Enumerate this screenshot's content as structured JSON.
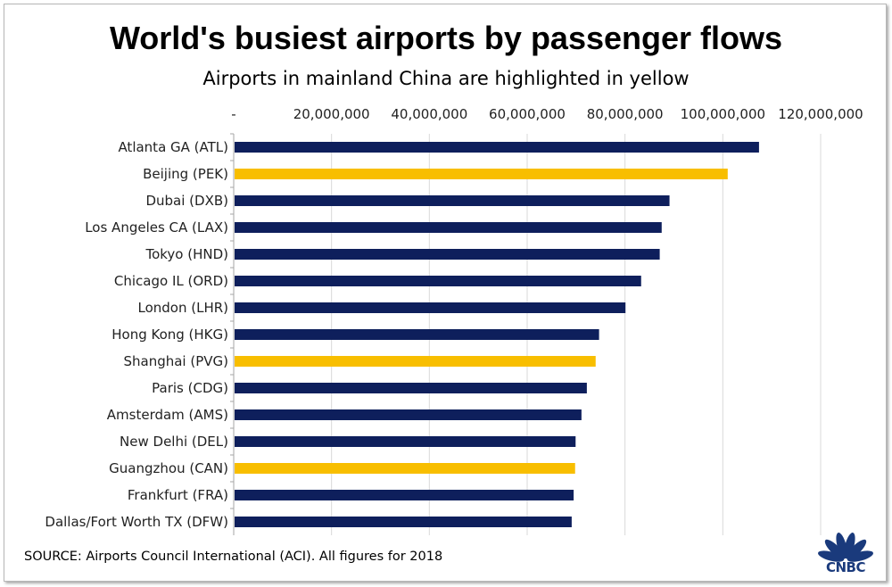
{
  "title": "World's busiest airports by passenger flows",
  "subtitle": "Airports in mainland China are highlighted in yellow",
  "source": "SOURCE: Airports Council International (ACI). All figures for 2018",
  "logo_text": "CNBC",
  "colors": {
    "default_bar": "#0e1f5c",
    "highlight_bar": "#f8be00",
    "grid": "#d9d9d9"
  },
  "chart_data": {
    "type": "bar",
    "orientation": "horizontal",
    "title": "World's busiest airports by passenger flows",
    "subtitle": "Airports in mainland China are highlighted in yellow",
    "xlabel": "",
    "ylabel": "",
    "xlim": [
      0,
      120000000
    ],
    "x_ticks": [
      0,
      20000000,
      40000000,
      60000000,
      80000000,
      100000000,
      120000000
    ],
    "x_tick_labels": [
      "-",
      "20,000,000",
      "40,000,000",
      "60,000,000",
      "80,000,000",
      "100,000,000",
      "120,000,000"
    ],
    "x_axis_position": "top",
    "grid": true,
    "categories": [
      "Atlanta GA (ATL)",
      "Beijing (PEK)",
      "Dubai (DXB)",
      "Los Angeles CA (LAX)",
      "Tokyo (HND)",
      "Chicago IL (ORD)",
      "London (LHR)",
      "Hong Kong (HKG)",
      "Shanghai (PVG)",
      "Paris (CDG)",
      "Amsterdam (AMS)",
      "New Delhi (DEL)",
      "Guangzhou (CAN)",
      "Frankfurt (FRA)",
      "Dallas/Fort Worth TX (DFW)"
    ],
    "values": [
      107400000,
      101000000,
      89100000,
      87500000,
      87100000,
      83300000,
      80100000,
      74700000,
      74000000,
      72200000,
      71100000,
      69900000,
      69800000,
      69500000,
      69100000
    ],
    "highlighted": [
      false,
      true,
      false,
      false,
      false,
      false,
      false,
      false,
      true,
      false,
      false,
      false,
      true,
      false,
      false
    ]
  }
}
